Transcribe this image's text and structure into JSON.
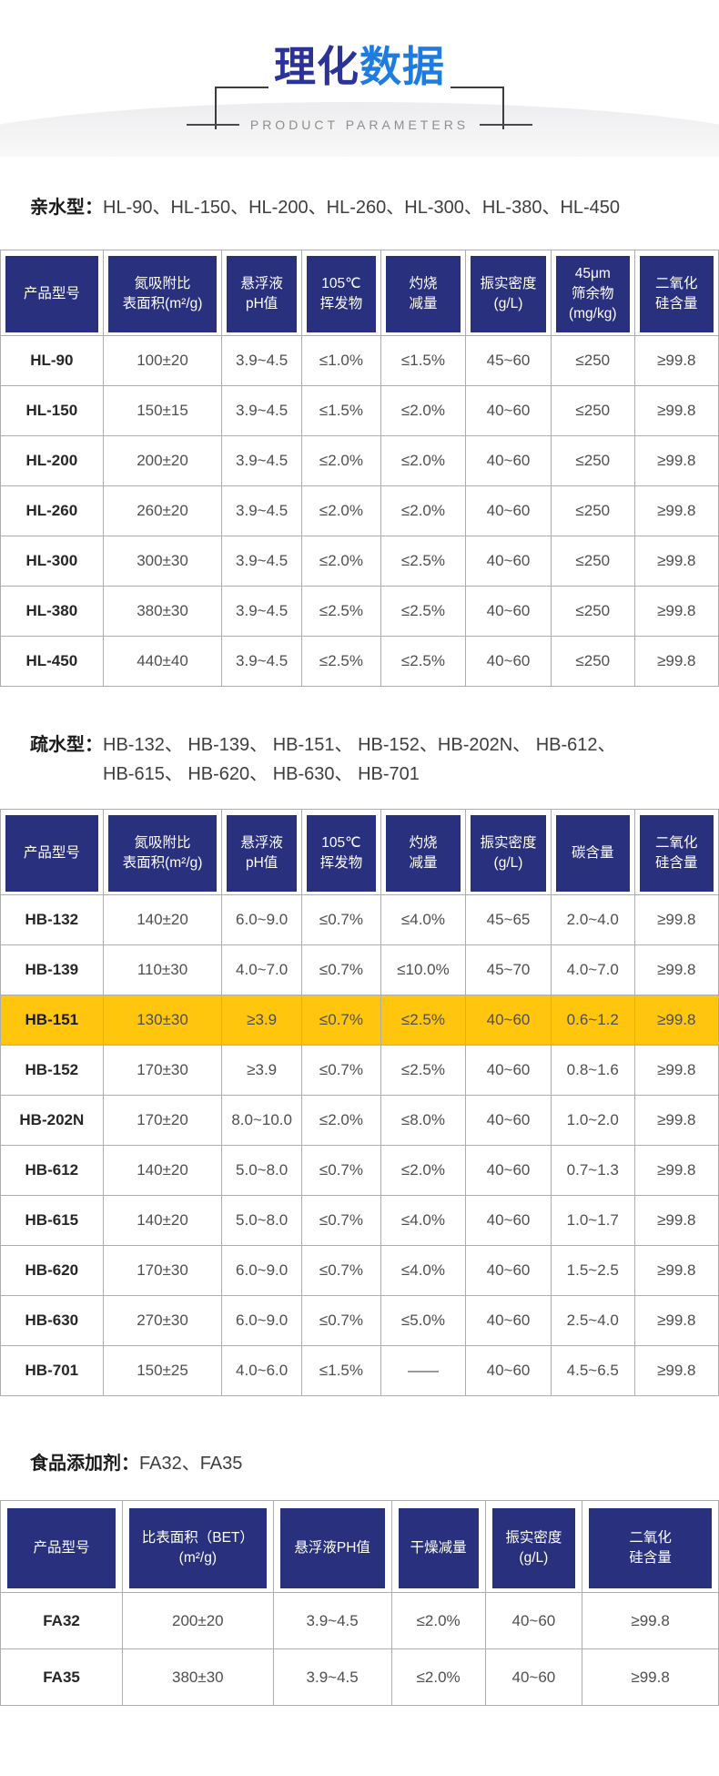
{
  "page": {
    "title_part1": "理化",
    "title_part2": "数据",
    "subtitle": "PRODUCT PARAMETERS",
    "colors": {
      "navy_header": "#29307e",
      "title_dark_blue": "#2b339b",
      "title_bright_blue": "#1e7ce0",
      "highlight_yellow": "#ffc60d",
      "grid_border": "#adadad"
    }
  },
  "sections": [
    {
      "label": "亲水型：",
      "models": "HL-90、HL-150、HL-200、HL-260、HL-300、HL-380、HL-450",
      "table": {
        "headers": [
          "产品型号",
          "氮吸附比\n表面积(m²/g)",
          "悬浮液\npH值",
          "105℃\n挥发物",
          "灼烧\n减量",
          "振实密度\n(g/L)",
          "45μm\n筛余物\n(mg/kg)",
          "二氧化\n硅含量"
        ],
        "rows": [
          {
            "model": "HL-90",
            "values": [
              "100±20",
              "3.9~4.5",
              "≤1.0%",
              "≤1.5%",
              "45~60",
              "≤250",
              "≥99.8"
            ],
            "highlighted": false
          },
          {
            "model": "HL-150",
            "values": [
              "150±15",
              "3.9~4.5",
              "≤1.5%",
              "≤2.0%",
              "40~60",
              "≤250",
              "≥99.8"
            ],
            "highlighted": false
          },
          {
            "model": "HL-200",
            "values": [
              "200±20",
              "3.9~4.5",
              "≤2.0%",
              "≤2.0%",
              "40~60",
              "≤250",
              "≥99.8"
            ],
            "highlighted": false
          },
          {
            "model": "HL-260",
            "values": [
              "260±20",
              "3.9~4.5",
              "≤2.0%",
              "≤2.0%",
              "40~60",
              "≤250",
              "≥99.8"
            ],
            "highlighted": false
          },
          {
            "model": "HL-300",
            "values": [
              "300±30",
              "3.9~4.5",
              "≤2.0%",
              "≤2.5%",
              "40~60",
              "≤250",
              "≥99.8"
            ],
            "highlighted": false
          },
          {
            "model": "HL-380",
            "values": [
              "380±30",
              "3.9~4.5",
              "≤2.5%",
              "≤2.5%",
              "40~60",
              "≤250",
              "≥99.8"
            ],
            "highlighted": false
          },
          {
            "model": "HL-450",
            "values": [
              "440±40",
              "3.9~4.5",
              "≤2.5%",
              "≤2.5%",
              "40~60",
              "≤250",
              "≥99.8"
            ],
            "highlighted": false
          }
        ]
      }
    },
    {
      "label": "疏水型：",
      "models": "HB-132、 HB-139、 HB-151、 HB-152、HB-202N、 HB-612、\nHB-615、 HB-620、 HB-630、 HB-701",
      "table": {
        "headers": [
          "产品型号",
          "氮吸附比\n表面积(m²/g)",
          "悬浮液\npH值",
          "105℃\n挥发物",
          "灼烧\n减量",
          "振实密度\n(g/L)",
          "碳含量",
          "二氧化\n硅含量"
        ],
        "rows": [
          {
            "model": "HB-132",
            "values": [
              "140±20",
              "6.0~9.0",
              "≤0.7%",
              "≤4.0%",
              "45~65",
              "2.0~4.0",
              "≥99.8"
            ],
            "highlighted": false
          },
          {
            "model": "HB-139",
            "values": [
              "110±30",
              "4.0~7.0",
              "≤0.7%",
              "≤10.0%",
              "45~70",
              "4.0~7.0",
              "≥99.8"
            ],
            "highlighted": false
          },
          {
            "model": "HB-151",
            "values": [
              "130±30",
              "≥3.9",
              "≤0.7%",
              "≤2.5%",
              "40~60",
              "0.6~1.2",
              "≥99.8"
            ],
            "highlighted": true
          },
          {
            "model": "HB-152",
            "values": [
              "170±30",
              "≥3.9",
              "≤0.7%",
              "≤2.5%",
              "40~60",
              "0.8~1.6",
              "≥99.8"
            ],
            "highlighted": false
          },
          {
            "model": "HB-202N",
            "values": [
              "170±20",
              "8.0~10.0",
              "≤2.0%",
              "≤8.0%",
              "40~60",
              "1.0~2.0",
              "≥99.8"
            ],
            "highlighted": false
          },
          {
            "model": "HB-612",
            "values": [
              "140±20",
              "5.0~8.0",
              "≤0.7%",
              "≤2.0%",
              "40~60",
              "0.7~1.3",
              "≥99.8"
            ],
            "highlighted": false
          },
          {
            "model": "HB-615",
            "values": [
              "140±20",
              "5.0~8.0",
              "≤0.7%",
              "≤4.0%",
              "40~60",
              "1.0~1.7",
              "≥99.8"
            ],
            "highlighted": false
          },
          {
            "model": "HB-620",
            "values": [
              "170±30",
              "6.0~9.0",
              "≤0.7%",
              "≤4.0%",
              "40~60",
              "1.5~2.5",
              "≥99.8"
            ],
            "highlighted": false
          },
          {
            "model": "HB-630",
            "values": [
              "270±30",
              "6.0~9.0",
              "≤0.7%",
              "≤5.0%",
              "40~60",
              "2.5~4.0",
              "≥99.8"
            ],
            "highlighted": false
          },
          {
            "model": "HB-701",
            "values": [
              "150±25",
              "4.0~6.0",
              "≤1.5%",
              "——",
              "40~60",
              "4.5~6.5",
              "≥99.8"
            ],
            "highlighted": false
          }
        ]
      }
    },
    {
      "label": "食品添加剂：",
      "models": "FA32、FA35",
      "table": {
        "headers": [
          "产品型号",
          "比表面积（BET）\n(m²/g)",
          "悬浮液PH值",
          "干燥减量",
          "振实密度\n(g/L)",
          "二氧化\n硅含量"
        ],
        "rows": [
          {
            "model": "FA32",
            "values": [
              "200±20",
              "3.9~4.5",
              "≤2.0%",
              "40~60",
              "≥99.8"
            ],
            "highlighted": false
          },
          {
            "model": "FA35",
            "values": [
              "380±30",
              "3.9~4.5",
              "≤2.0%",
              "40~60",
              "≥99.8"
            ],
            "highlighted": false
          }
        ]
      }
    }
  ]
}
